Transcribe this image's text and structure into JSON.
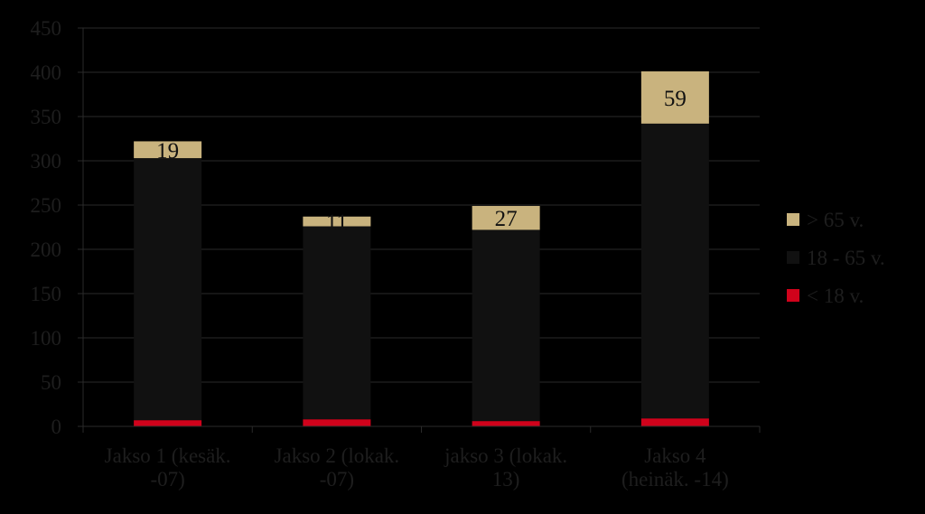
{
  "chart_data": {
    "type": "bar",
    "stacked": true,
    "categories": [
      [
        "Jakso 1 (kesäk.",
        "-07)"
      ],
      [
        "Jakso 2 (lokak.",
        "-07)"
      ],
      [
        "jakso 3 (lokak.",
        "13)"
      ],
      [
        "Jakso 4",
        "(heinäk. -14)"
      ]
    ],
    "series": [
      {
        "name": "<  18 v.",
        "values": [
          7,
          8,
          6,
          9
        ],
        "color": "#d0021b",
        "labels": [
          "",
          "",
          "",
          ""
        ]
      },
      {
        "name": "18 - 65 v.",
        "values": [
          296,
          218,
          216,
          333
        ],
        "color": "#111111",
        "labels": [
          "",
          "",
          "",
          ""
        ]
      },
      {
        "name": "> 65 v.",
        "values": [
          19,
          11,
          27,
          59
        ],
        "color": "#c9b37e",
        "labels": [
          "19",
          "11",
          "27",
          "59"
        ]
      }
    ],
    "legend_order": [
      2,
      1,
      0
    ],
    "ylim": [
      0,
      450
    ],
    "yticks": [
      0,
      50,
      100,
      150,
      200,
      250,
      300,
      350,
      400,
      450
    ],
    "grid": true,
    "legend_position": "right",
    "title": "",
    "xlabel": "",
    "ylabel": ""
  }
}
